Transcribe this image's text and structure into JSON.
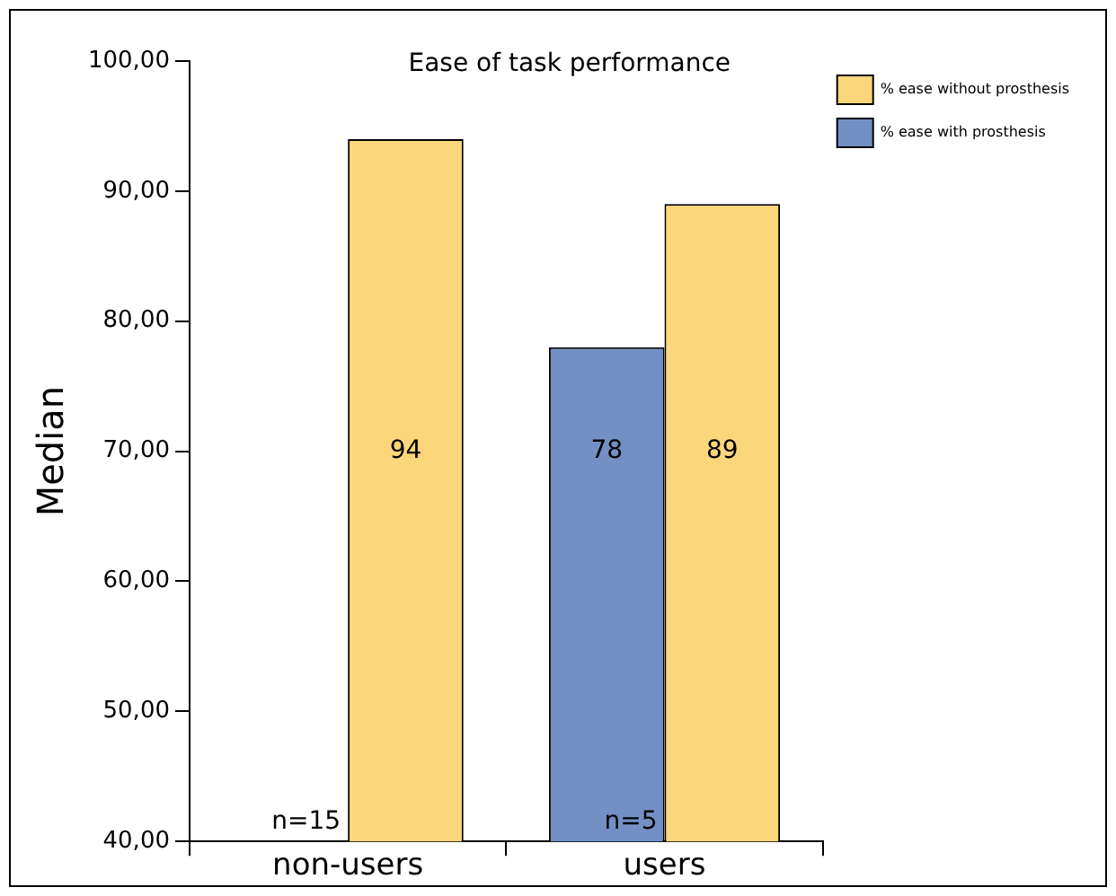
{
  "chart_data": {
    "type": "bar",
    "title": "Ease of task performance",
    "ylabel": "Median",
    "categories": [
      "non-users",
      "users"
    ],
    "series": [
      {
        "name": "% ease with prosthesis",
        "color": "#7390c4",
        "values": [
          null,
          78
        ]
      },
      {
        "name": "% ease without prosthesis",
        "color": "#fcd67a",
        "values": [
          94,
          89
        ]
      }
    ],
    "ylim": [
      40,
      100
    ],
    "yticks": [
      {
        "value": 40,
        "label": "40,00"
      },
      {
        "value": 50,
        "label": "50,00"
      },
      {
        "value": 60,
        "label": "60,00"
      },
      {
        "value": 70,
        "label": "70,00"
      },
      {
        "value": 80,
        "label": "80,00"
      },
      {
        "value": 90,
        "label": "90,00"
      },
      {
        "value": 100,
        "label": "100,00"
      }
    ],
    "annotations": [
      {
        "text": "n=15",
        "x": "non-users",
        "y": 41.5
      },
      {
        "text": "n=5",
        "x": "users",
        "y": 41.5
      }
    ],
    "data_labels": true,
    "grid": false,
    "legend": "top right"
  }
}
